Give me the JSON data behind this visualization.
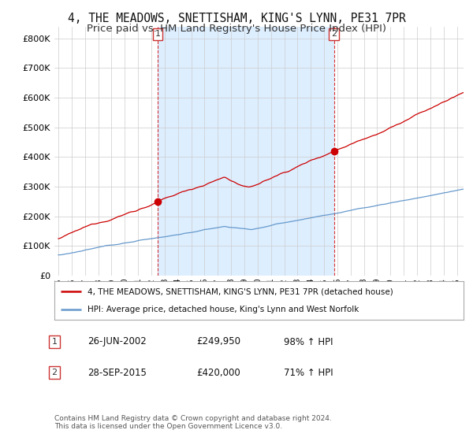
{
  "title": "4, THE MEADOWS, SNETTISHAM, KING'S LYNN, PE31 7PR",
  "subtitle": "Price paid vs. HM Land Registry's House Price Index (HPI)",
  "title_fontsize": 10.5,
  "subtitle_fontsize": 9.5,
  "ylabel_ticks": [
    "£0",
    "£100K",
    "£200K",
    "£300K",
    "£400K",
    "£500K",
    "£600K",
    "£700K",
    "£800K"
  ],
  "ytick_vals": [
    0,
    100000,
    200000,
    300000,
    400000,
    500000,
    600000,
    700000,
    800000
  ],
  "ylim": [
    0,
    840000
  ],
  "xlim_start": 1994.7,
  "xlim_end": 2025.5,
  "red_color": "#cc0000",
  "blue_color": "#6699cc",
  "shade_color": "#ddeeff",
  "marker1_date": 2002.48,
  "marker1_value": 249950,
  "marker1_label": "1",
  "marker2_date": 2015.74,
  "marker2_value": 420000,
  "marker2_label": "2",
  "legend_line1": "4, THE MEADOWS, SNETTISHAM, KING'S LYNN, PE31 7PR (detached house)",
  "legend_line2": "HPI: Average price, detached house, King's Lynn and West Norfolk",
  "annotation1_date": "26-JUN-2002",
  "annotation1_price": "£249,950",
  "annotation1_pct": "98% ↑ HPI",
  "annotation2_date": "28-SEP-2015",
  "annotation2_price": "£420,000",
  "annotation2_pct": "71% ↑ HPI",
  "footnote": "Contains HM Land Registry data © Crown copyright and database right 2024.\nThis data is licensed under the Open Government Licence v3.0.",
  "bg_color": "#ffffff",
  "grid_color": "#cccccc"
}
